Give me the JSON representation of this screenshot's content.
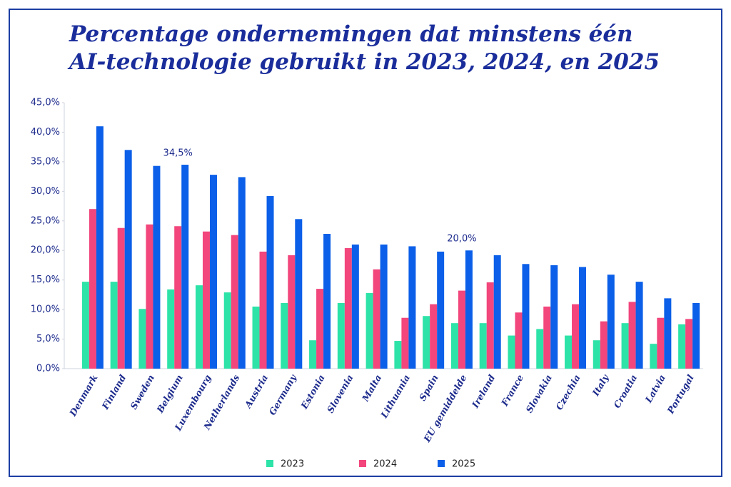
{
  "chart_data": {
    "type": "bar",
    "title": [
      "Percentage ondernemingen dat minstens één",
      "AI-technologie gebruikt in 2023, 2024, en 2025"
    ],
    "categories": [
      "Denmark",
      "Finland",
      "Sweden",
      "Belgium",
      "Luxembourg",
      "Netherlands",
      "Austria",
      "Germany",
      "Estonia",
      "Slovenia",
      "Malta",
      "Lithuania",
      "Spain",
      "EU gemiddelde",
      "Ireland",
      "France",
      "Slovakia",
      "Czechia",
      "Italy",
      "Croatia",
      "Latvia",
      "Portugal"
    ],
    "series": [
      {
        "name": "2023",
        "color": "#2de3a8",
        "values": [
          14.7,
          14.7,
          10.1,
          13.4,
          14.1,
          12.9,
          10.5,
          11.1,
          4.8,
          11.1,
          12.8,
          4.7,
          8.9,
          7.7,
          7.7,
          5.6,
          6.7,
          5.6,
          4.8,
          7.7,
          4.2,
          7.5
        ]
      },
      {
        "name": "2024",
        "color": "#f2467c",
        "values": [
          27.0,
          23.8,
          24.4,
          24.1,
          23.2,
          22.6,
          19.8,
          19.2,
          13.5,
          20.4,
          16.8,
          8.6,
          10.9,
          13.2,
          14.6,
          9.5,
          10.5,
          10.9,
          8.0,
          11.3,
          8.6,
          8.4
        ]
      },
      {
        "name": "2025",
        "color": "#0b5fe8",
        "values": [
          41.0,
          37.0,
          34.3,
          34.5,
          32.8,
          32.4,
          29.2,
          25.3,
          22.8,
          21.0,
          21.0,
          20.7,
          19.8,
          20.0,
          19.2,
          17.7,
          17.5,
          17.2,
          15.9,
          14.7,
          11.9,
          11.1
        ],
        "value_labels": [
          null,
          null,
          null,
          "34,5%",
          null,
          null,
          null,
          null,
          null,
          null,
          null,
          null,
          null,
          "20,0%",
          null,
          null,
          null,
          null,
          null,
          null,
          null,
          null
        ]
      }
    ],
    "ylim": [
      0,
      45
    ],
    "yticks": [
      {
        "value": 0,
        "label": "0,0%"
      },
      {
        "value": 5,
        "label": "5,0%"
      },
      {
        "value": 10,
        "label": "10,0%"
      },
      {
        "value": 15,
        "label": "15,0%"
      },
      {
        "value": 20,
        "label": "20,0%"
      },
      {
        "value": 25,
        "label": "25,0%"
      },
      {
        "value": 30,
        "label": "30,0%"
      },
      {
        "value": 35,
        "label": "35,0%"
      },
      {
        "value": 40,
        "label": "40,0%"
      },
      {
        "value": 45,
        "label": "45,0%"
      }
    ],
    "grid": false,
    "legend": "bottom"
  }
}
